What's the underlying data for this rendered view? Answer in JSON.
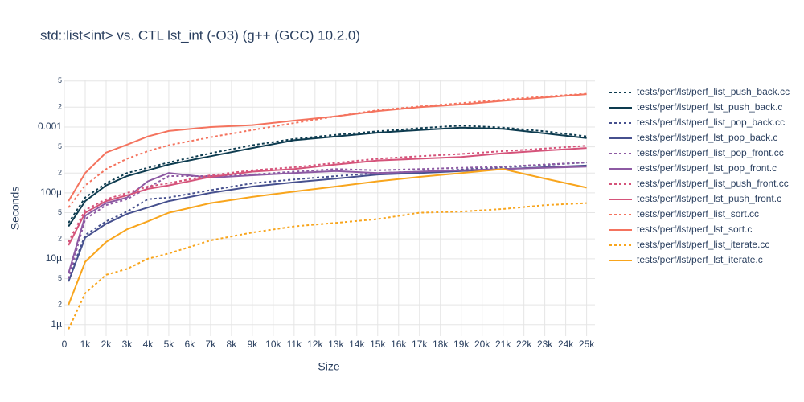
{
  "chart_data": {
    "type": "line",
    "title": "std::list<int> vs. CTL lst_int (-O3) (g++ (GCC) 10.2.0)",
    "x_label": "Size",
    "y_label": "Seconds",
    "log_y": true,
    "grid": true,
    "legend": "right",
    "xlim": [
      0,
      25400
    ],
    "ylim": [
      6.7e-07,
      0.0051
    ],
    "xticks": [
      0,
      {
        "value": 1000,
        "label": "1k"
      },
      {
        "value": 2000,
        "label": "2k"
      },
      {
        "value": 3000,
        "label": "3k"
      },
      {
        "value": 4000,
        "label": "4k"
      },
      {
        "value": 5000,
        "label": "5k"
      },
      {
        "value": 6000,
        "label": "6k"
      },
      {
        "value": 7000,
        "label": "7k"
      },
      {
        "value": 8000,
        "label": "8k"
      },
      {
        "value": 9000,
        "label": "9k"
      },
      {
        "value": 10000,
        "label": "10k"
      },
      {
        "value": 11000,
        "label": "11k"
      },
      {
        "value": 12000,
        "label": "12k"
      },
      {
        "value": 13000,
        "label": "13k"
      },
      {
        "value": 14000,
        "label": "14k"
      },
      {
        "value": 15000,
        "label": "15k"
      },
      {
        "value": 16000,
        "label": "16k"
      },
      {
        "value": 17000,
        "label": "17k"
      },
      {
        "value": 18000,
        "label": "18k"
      },
      {
        "value": 19000,
        "label": "19k"
      },
      {
        "value": 20000,
        "label": "20k"
      },
      {
        "value": 21000,
        "label": "21k"
      },
      {
        "value": 22000,
        "label": "22k"
      },
      {
        "value": 23000,
        "label": "23k"
      },
      {
        "value": 24000,
        "label": "24k"
      },
      {
        "value": 25000,
        "label": "25k"
      }
    ],
    "yticks": [
      {
        "value": 1e-06,
        "label": "1µ"
      },
      {
        "value": 2e-06,
        "label": "2"
      },
      {
        "value": 5e-06,
        "label": "5"
      },
      {
        "value": 1e-05,
        "label": "10µ"
      },
      {
        "value": 2e-05,
        "label": "2"
      },
      {
        "value": 5e-05,
        "label": "5"
      },
      {
        "value": 0.0001,
        "label": "100µ"
      },
      {
        "value": 0.0002,
        "label": "2"
      },
      {
        "value": 0.0005,
        "label": "5"
      },
      0.001,
      {
        "value": 0.002,
        "label": "2"
      },
      {
        "value": 0.005,
        "label": "5"
      }
    ],
    "x": [
      200,
      1000,
      2000,
      3000,
      4000,
      5000,
      7000,
      9000,
      11000,
      13000,
      15000,
      17000,
      19000,
      21000,
      23000,
      25000
    ],
    "series": [
      {
        "name": "tests/perf/lst/perf_list_push_back.cc",
        "color": "#0d3b4f",
        "dash": "dot",
        "values": [
          3.5e-05,
          8.5e-05,
          0.00014,
          0.0002,
          0.00024,
          0.00029,
          0.0004,
          0.00053,
          0.00066,
          0.00076,
          0.00086,
          0.00096,
          0.00105,
          0.00098,
          0.00086,
          0.00072
        ]
      },
      {
        "name": "tests/perf/lst/perf_lst_push_back.c",
        "color": "#0d3b4f",
        "dash": "solid",
        "values": [
          3.1e-05,
          7.5e-05,
          0.00013,
          0.00018,
          0.00022,
          0.00027,
          0.00036,
          0.00048,
          0.00063,
          0.00072,
          0.00082,
          0.0009,
          0.00098,
          0.00094,
          0.0008,
          0.00068
        ]
      },
      {
        "name": "tests/perf/lst/perf_list_pop_back.cc",
        "color": "#46508e",
        "dash": "dot",
        "values": [
          5e-06,
          2.3e-05,
          3.7e-05,
          5.2e-05,
          8e-05,
          8.5e-05,
          0.00011,
          0.00014,
          0.00016,
          0.00018,
          0.0002,
          0.00021,
          0.000225,
          0.000245,
          0.000265,
          0.00029
        ]
      },
      {
        "name": "tests/perf/lst/perf_lst_pop_back.c",
        "color": "#46508e",
        "dash": "solid",
        "values": [
          4.5e-06,
          2.1e-05,
          3.4e-05,
          4.8e-05,
          6e-05,
          7.5e-05,
          0.0001,
          0.000125,
          0.000145,
          0.000165,
          0.00019,
          0.0002,
          0.000215,
          0.00023,
          0.000245,
          0.00026
        ]
      },
      {
        "name": "tests/perf/lst/perf_list_pop_front.cc",
        "color": "#8d5aa3",
        "dash": "dot",
        "values": [
          5e-06,
          4e-05,
          6.5e-05,
          8e-05,
          0.00012,
          0.00018,
          0.00018,
          0.00019,
          0.00021,
          0.00023,
          0.00022,
          0.00023,
          0.00024,
          0.00025,
          0.00027,
          0.00029
        ]
      },
      {
        "name": "tests/perf/lst/perf_lst_pop_front.c",
        "color": "#8d5aa3",
        "dash": "solid",
        "values": [
          6e-06,
          4.5e-05,
          7e-05,
          8.5e-05,
          0.00015,
          0.0002,
          0.00017,
          0.000185,
          0.0002,
          0.000215,
          0.0002,
          0.00021,
          0.00022,
          0.00023,
          0.00024,
          0.00025
        ]
      },
      {
        "name": "tests/perf/lst/perf_list_push_front.cc",
        "color": "#d5537a",
        "dash": "dot",
        "values": [
          1.8e-05,
          5.5e-05,
          8e-05,
          0.0001,
          0.000125,
          0.00014,
          0.000185,
          0.00022,
          0.000245,
          0.000285,
          0.00033,
          0.00036,
          0.00039,
          0.00043,
          0.00047,
          0.00052
        ]
      },
      {
        "name": "tests/perf/lst/perf_lst_push_front.c",
        "color": "#d5537a",
        "dash": "solid",
        "values": [
          1.6e-05,
          5e-05,
          7.5e-05,
          9.2e-05,
          0.000115,
          0.00013,
          0.000175,
          0.00021,
          0.00023,
          0.00027,
          0.00031,
          0.00033,
          0.00035,
          0.0004,
          0.00044,
          0.00048
        ]
      },
      {
        "name": "tests/perf/lst/perf_list_sort.cc",
        "color": "#f4735e",
        "dash": "dot",
        "values": [
          6e-05,
          0.00013,
          0.00023,
          0.00033,
          0.00043,
          0.00053,
          0.0007,
          0.0009,
          0.00115,
          0.00145,
          0.0018,
          0.00205,
          0.0023,
          0.0026,
          0.0029,
          0.0032
        ]
      },
      {
        "name": "tests/perf/lst/perf_lst_sort.c",
        "color": "#f4735e",
        "dash": "solid",
        "values": [
          7.5e-05,
          0.0002,
          0.00041,
          0.00054,
          0.00072,
          0.00087,
          0.001,
          0.00107,
          0.00125,
          0.00145,
          0.00175,
          0.002,
          0.0022,
          0.0025,
          0.0028,
          0.00315
        ]
      },
      {
        "name": "tests/perf/lst/perf_list_iterate.cc",
        "color": "#f8a51d",
        "dash": "dot",
        "values": [
          8.5e-07,
          3e-06,
          5.7e-06,
          7e-06,
          1e-05,
          1.2e-05,
          1.9e-05,
          2.5e-05,
          3.1e-05,
          3.5e-05,
          4e-05,
          5e-05,
          5.2e-05,
          5.7e-05,
          6.5e-05,
          7e-05
        ]
      },
      {
        "name": "tests/perf/lst/perf_lst_iterate.c",
        "color": "#f8a51d",
        "dash": "solid",
        "values": [
          2e-06,
          9e-06,
          1.8e-05,
          2.8e-05,
          3.7e-05,
          5e-05,
          7e-05,
          8.7e-05,
          0.000105,
          0.000125,
          0.00015,
          0.000175,
          0.0002,
          0.00023,
          0.000165,
          0.00012
        ]
      }
    ]
  }
}
